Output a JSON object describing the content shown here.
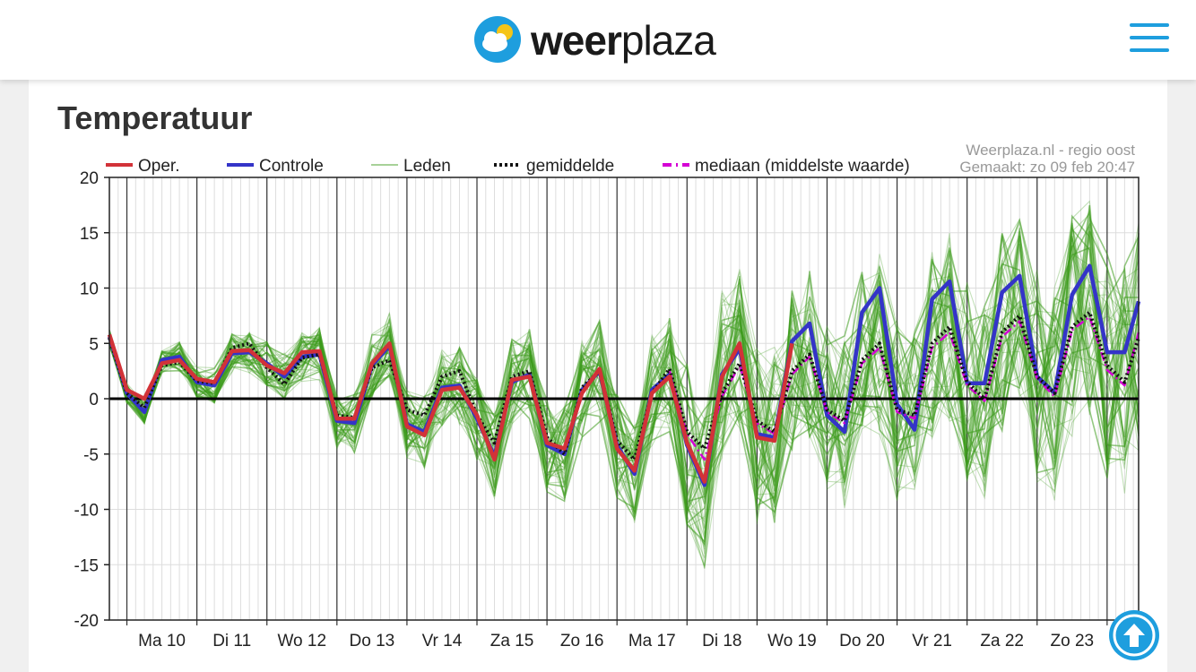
{
  "header": {
    "brand_bold": "weer",
    "brand_light": "plaza",
    "menu_icon": "hamburger-menu-icon"
  },
  "section": {
    "title": "Temperatuur"
  },
  "scroll_top_icon": "arrow-up-icon",
  "colors": {
    "accent": "#1e9ede",
    "oper": "#d23238",
    "controle": "#3434c8",
    "leden": "#3c9a1c",
    "gemiddelde": "#111111",
    "mediaan": "#d400d4"
  },
  "chart_data": {
    "type": "line",
    "title": "Temperatuur",
    "source_line1": "Weerplaza.nl - regio oost",
    "source_line2": "Gemaakt: zo 09 feb 20:47",
    "ylim": [
      -20,
      20
    ],
    "y_ticks": [
      20,
      15,
      10,
      5,
      0,
      -5,
      -10,
      -15,
      -20
    ],
    "x_range": [
      0,
      14.7
    ],
    "day_labels": [
      "Ma 10",
      "Di 11",
      "Wo 12",
      "Do 13",
      "Vr 14",
      "Za 15",
      "Zo 16",
      "Ma 17",
      "Di 18",
      "Wo 19",
      "Do 20",
      "Vr 21",
      "Za 22",
      "Zo 23"
    ],
    "legend": [
      {
        "name": "Oper.",
        "style": "solid",
        "color": "#d23238"
      },
      {
        "name": "Controle",
        "style": "solid",
        "color": "#3434c8"
      },
      {
        "name": "Leden",
        "style": "thin",
        "color": "#3c9a1c"
      },
      {
        "name": "gemiddelde",
        "style": "dotted",
        "color": "#111111"
      },
      {
        "name": "mediaan (middelste waarde)",
        "style": "dashdot",
        "color": "#d400d4"
      }
    ],
    "series": [
      {
        "name": "Oper.",
        "x": [
          0,
          0.25,
          0.5,
          0.75,
          1.0,
          1.25,
          1.5,
          1.75,
          2.0,
          2.25,
          2.5,
          2.75,
          3.0,
          3.25,
          3.5,
          3.75,
          4.0,
          4.25,
          4.5,
          4.75,
          5.0,
          5.25,
          5.5,
          5.75,
          6.0,
          6.25,
          6.5,
          6.75,
          7.0,
          7.25,
          7.5,
          7.75,
          8.0,
          8.25,
          8.5,
          8.75,
          9.0,
          9.25,
          9.5,
          9.75
        ],
        "values": [
          5.8,
          0.8,
          0.0,
          3.2,
          3.5,
          1.8,
          1.5,
          4.3,
          4.4,
          3.0,
          2.3,
          4.2,
          4.3,
          -1.8,
          -1.8,
          3.2,
          5.0,
          -2.5,
          -3.3,
          0.8,
          1.0,
          -1.5,
          -5.5,
          1.7,
          2.0,
          -4.0,
          -4.5,
          0.5,
          2.7,
          -4.5,
          -6.5,
          0.5,
          2.0,
          -4.0,
          -7.5,
          2.0,
          5.0,
          -3.5,
          -3.8,
          5.0
        ]
      },
      {
        "name": "Controle",
        "x": [
          0,
          0.25,
          0.5,
          0.75,
          1.0,
          1.25,
          1.5,
          1.75,
          2.0,
          2.25,
          2.5,
          2.75,
          3.0,
          3.25,
          3.5,
          3.75,
          4.0,
          4.25,
          4.5,
          4.75,
          5.0,
          5.25,
          5.5,
          5.75,
          6.0,
          6.25,
          6.5,
          6.75,
          7.0,
          7.25,
          7.5,
          7.75,
          8.0,
          8.25,
          8.5,
          8.75,
          9.0,
          9.25,
          9.5,
          9.75,
          10.0,
          10.25,
          10.5,
          10.75,
          11.0,
          11.25,
          11.5,
          11.75,
          12.0,
          12.25,
          12.5,
          12.75,
          13.0,
          13.25,
          13.5,
          13.75,
          14.0,
          14.25,
          14.5,
          14.7
        ],
        "values": [
          5.6,
          0.5,
          -1.2,
          3.5,
          3.8,
          1.5,
          1.2,
          4.1,
          4.2,
          3.2,
          2.0,
          3.8,
          4.0,
          -2.0,
          -2.2,
          3.0,
          4.8,
          -2.3,
          -3.0,
          1.0,
          1.2,
          -1.8,
          -5.2,
          1.5,
          2.2,
          -4.2,
          -5.0,
          0.8,
          2.5,
          -4.2,
          -6.8,
          0.8,
          2.2,
          -4.2,
          -7.8,
          2.2,
          4.5,
          -3.2,
          -3.5,
          5.2,
          6.8,
          -1.5,
          -3.0,
          7.8,
          10.0,
          -0.5,
          -2.8,
          9.0,
          10.6,
          1.4,
          1.4,
          9.6,
          11.1,
          2.0,
          0.5,
          9.4,
          12.0,
          4.2,
          4.2,
          8.8
        ]
      },
      {
        "name": "gemiddelde",
        "x": [
          0,
          0.25,
          0.5,
          0.75,
          1.0,
          1.25,
          1.5,
          1.75,
          2.0,
          2.25,
          2.5,
          2.75,
          3.0,
          3.25,
          3.5,
          3.75,
          4.0,
          4.25,
          4.5,
          4.75,
          5.0,
          5.25,
          5.5,
          5.75,
          6.0,
          6.25,
          6.5,
          6.75,
          7.0,
          7.25,
          7.5,
          7.75,
          8.0,
          8.25,
          8.5,
          8.75,
          9.0,
          9.25,
          9.5,
          9.75,
          10.0,
          10.25,
          10.5,
          10.75,
          11.0,
          11.25,
          11.5,
          11.75,
          12.0,
          12.25,
          12.5,
          12.75,
          13.0,
          13.25,
          13.5,
          13.75,
          14.0,
          14.25,
          14.5,
          14.7
        ],
        "values": [
          5.5,
          0.5,
          -0.8,
          3.0,
          3.3,
          1.6,
          1.4,
          4.6,
          5.0,
          2.8,
          1.3,
          3.7,
          4.0,
          -1.5,
          -1.7,
          2.8,
          3.5,
          -1.0,
          -1.5,
          2.0,
          2.5,
          -1.5,
          -4.0,
          2.0,
          2.5,
          -3.5,
          -5.0,
          1.0,
          2.5,
          -3.8,
          -5.5,
          0.5,
          2.7,
          -3.0,
          -4.5,
          0.5,
          3.2,
          -2.0,
          -3.0,
          2.5,
          4.0,
          -1.0,
          -2.0,
          3.5,
          5.0,
          -1.0,
          -1.5,
          5.0,
          6.5,
          1.5,
          0.0,
          6.0,
          7.5,
          2.0,
          0.5,
          6.5,
          7.8,
          3.0,
          1.5,
          5.5
        ]
      },
      {
        "name": "mediaan (middelste waarde)",
        "x": [
          8.0,
          8.25,
          8.5,
          8.75,
          9.0,
          9.25,
          9.5,
          9.75,
          10.0,
          10.25,
          10.5,
          10.75,
          11.0,
          11.25,
          11.5,
          11.75,
          12.0,
          12.25,
          12.5,
          12.75,
          13.0,
          13.25,
          13.5,
          13.75,
          14.0,
          14.25,
          14.5,
          14.7
        ],
        "values": [
          2.5,
          -3.2,
          -5.5,
          0.2,
          3.0,
          -2.2,
          -3.2,
          2.2,
          3.8,
          -1.2,
          -2.2,
          3.2,
          4.6,
          -1.2,
          -1.8,
          4.6,
          6.0,
          1.2,
          -0.2,
          5.6,
          7.0,
          1.8,
          0.2,
          6.2,
          7.4,
          2.6,
          1.2,
          6.0
        ]
      }
    ],
    "ensemble_members": 50
  }
}
